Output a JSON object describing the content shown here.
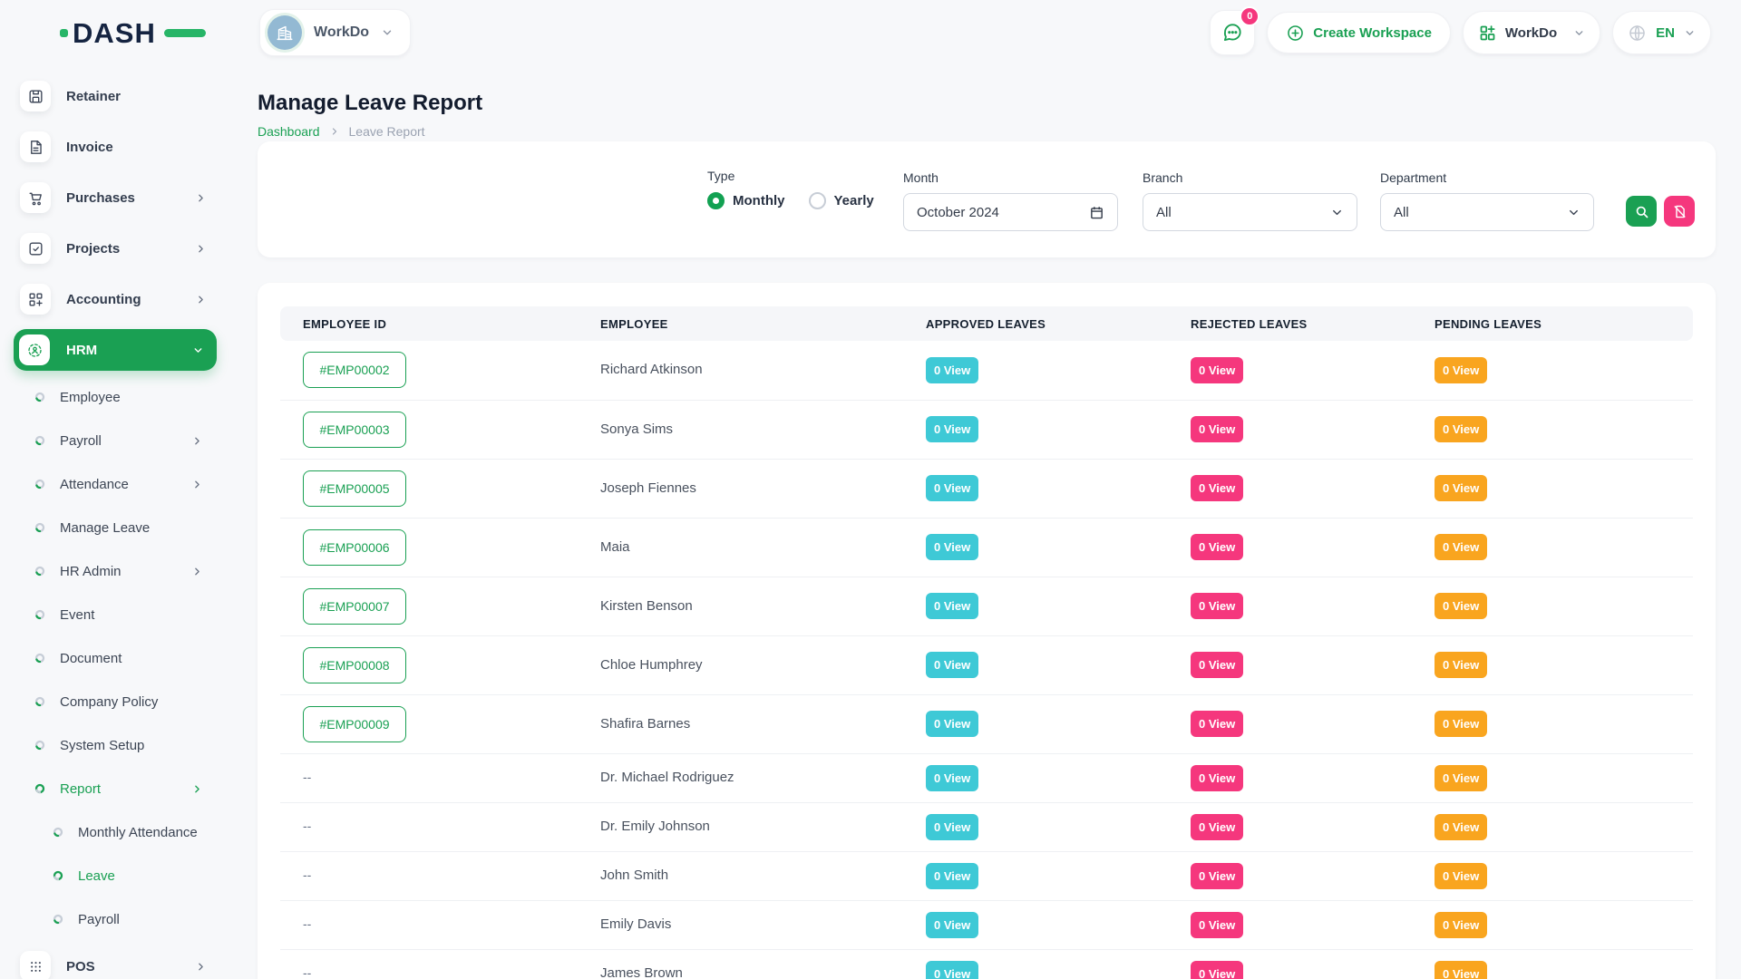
{
  "brand": {
    "name": "DASH"
  },
  "colors": {
    "primary": "#1aa053",
    "approved_badge": "#3ec9d6",
    "rejected_badge": "#f5377d",
    "pending_badge": "#f9a51f",
    "reset_button": "#f5377d"
  },
  "topbar": {
    "workspace": {
      "name": "WorkDo",
      "icon": "building-icon"
    },
    "chat": {
      "icon": "chat-bubble-icon",
      "badge": "0"
    },
    "create_workspace": {
      "label": "Create Workspace",
      "icon": "plus-circle-icon"
    },
    "app_switcher": {
      "label": "WorkDo",
      "icon": "grid-plus-icon"
    },
    "language": {
      "label": "EN",
      "icon": "globe-icon"
    }
  },
  "sidebar": {
    "items": [
      {
        "label": "Retainer",
        "icon": "save-icon"
      },
      {
        "label": "Invoice",
        "icon": "invoice-icon"
      },
      {
        "label": "Purchases",
        "icon": "cart-icon",
        "chevron": "right"
      },
      {
        "label": "Projects",
        "icon": "checkbox-icon",
        "chevron": "right"
      },
      {
        "label": "Accounting",
        "icon": "widgets-icon",
        "chevron": "right"
      },
      {
        "label": "HRM",
        "icon": "hrm-icon",
        "chevron": "down",
        "active": true,
        "children": [
          {
            "label": "Employee"
          },
          {
            "label": "Payroll",
            "chevron": "right"
          },
          {
            "label": "Attendance",
            "chevron": "right"
          },
          {
            "label": "Manage Leave"
          },
          {
            "label": "HR Admin",
            "chevron": "right"
          },
          {
            "label": "Event"
          },
          {
            "label": "Document"
          },
          {
            "label": "Company Policy"
          },
          {
            "label": "System Setup"
          },
          {
            "label": "Report",
            "chevron": "right",
            "active": true,
            "children": [
              {
                "label": "Monthly Attendance"
              },
              {
                "label": "Leave",
                "active": true
              },
              {
                "label": "Payroll"
              }
            ]
          }
        ]
      },
      {
        "label": "POS",
        "icon": "pos-icon",
        "chevron": "right"
      }
    ]
  },
  "page": {
    "title": "Manage Leave Report",
    "breadcrumb": {
      "home": "Dashboard",
      "current": "Leave Report"
    }
  },
  "filters": {
    "type": {
      "label": "Type",
      "options": [
        {
          "label": "Monthly",
          "selected": true
        },
        {
          "label": "Yearly",
          "selected": false
        }
      ]
    },
    "month": {
      "label": "Month",
      "value": "October 2024"
    },
    "branch": {
      "label": "Branch",
      "value": "All"
    },
    "department": {
      "label": "Department",
      "value": "All"
    },
    "search_button": {
      "icon": "search-icon"
    },
    "reset_button": {
      "icon": "file-slash-icon"
    }
  },
  "table": {
    "columns": [
      "EMPLOYEE ID",
      "EMPLOYEE",
      "APPROVED LEAVES",
      "REJECTED LEAVES",
      "PENDING LEAVES"
    ],
    "rows": [
      {
        "id": "#EMP00002",
        "name": "Richard Atkinson",
        "approved": "0 View",
        "rejected": "0 View",
        "pending": "0 View"
      },
      {
        "id": "#EMP00003",
        "name": "Sonya Sims",
        "approved": "0 View",
        "rejected": "0 View",
        "pending": "0 View"
      },
      {
        "id": "#EMP00005",
        "name": "Joseph Fiennes",
        "approved": "0 View",
        "rejected": "0 View",
        "pending": "0 View"
      },
      {
        "id": "#EMP00006",
        "name": "Maia",
        "approved": "0 View",
        "rejected": "0 View",
        "pending": "0 View"
      },
      {
        "id": "#EMP00007",
        "name": "Kirsten Benson",
        "approved": "0 View",
        "rejected": "0 View",
        "pending": "0 View"
      },
      {
        "id": "#EMP00008",
        "name": "Chloe Humphrey",
        "approved": "0 View",
        "rejected": "0 View",
        "pending": "0 View"
      },
      {
        "id": "#EMP00009",
        "name": "Shafira Barnes",
        "approved": "0 View",
        "rejected": "0 View",
        "pending": "0 View"
      },
      {
        "id": "--",
        "name": "Dr. Michael Rodriguez",
        "approved": "0 View",
        "rejected": "0 View",
        "pending": "0 View"
      },
      {
        "id": "--",
        "name": "Dr. Emily Johnson",
        "approved": "0 View",
        "rejected": "0 View",
        "pending": "0 View"
      },
      {
        "id": "--",
        "name": "John Smith",
        "approved": "0 View",
        "rejected": "0 View",
        "pending": "0 View"
      },
      {
        "id": "--",
        "name": "Emily Davis",
        "approved": "0 View",
        "rejected": "0 View",
        "pending": "0 View"
      },
      {
        "id": "--",
        "name": "James Brown",
        "approved": "0 View",
        "rejected": "0 View",
        "pending": "0 View"
      }
    ]
  }
}
